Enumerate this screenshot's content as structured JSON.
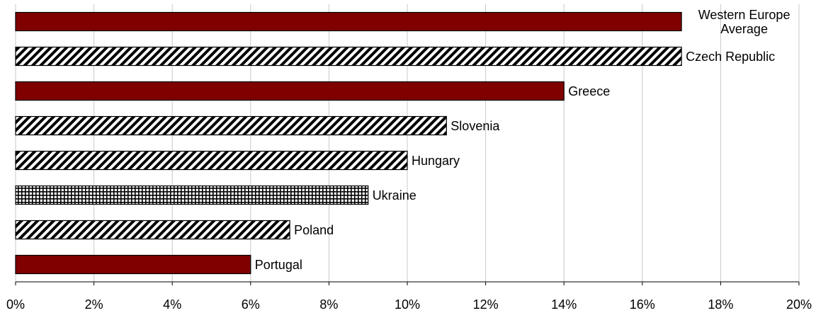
{
  "chart_data": {
    "type": "bar",
    "orientation": "horizontal",
    "categories": [
      "Western Europe Average",
      "Czech Republic",
      "Greece",
      "Slovenia",
      "Hungary",
      "Ukraine",
      "Poland",
      "Portugal"
    ],
    "values": [
      17,
      17,
      14,
      11,
      10,
      9,
      7,
      6
    ],
    "colors": [
      "#800000",
      "#808000",
      "#800000",
      "#808000",
      "#808000",
      "#808000",
      "#808000",
      "#800000"
    ],
    "patterns": [
      "solid",
      "diagonal",
      "solid",
      "diagonal",
      "diagonal",
      "grid",
      "diagonal",
      "solid"
    ],
    "xlim": [
      0,
      20
    ],
    "xticks": [
      {
        "value": 0,
        "label": "0%"
      },
      {
        "value": 2,
        "label": "2%"
      },
      {
        "value": 4,
        "label": "4%"
      },
      {
        "value": 6,
        "label": "6%"
      },
      {
        "value": 8,
        "label": "8%"
      },
      {
        "value": 10,
        "label": "10%"
      },
      {
        "value": 12,
        "label": "12%"
      },
      {
        "value": 14,
        "label": "14%"
      },
      {
        "value": 16,
        "label": "16%"
      },
      {
        "value": 18,
        "label": "18%"
      },
      {
        "value": 20,
        "label": "20%"
      }
    ],
    "grid": true
  }
}
